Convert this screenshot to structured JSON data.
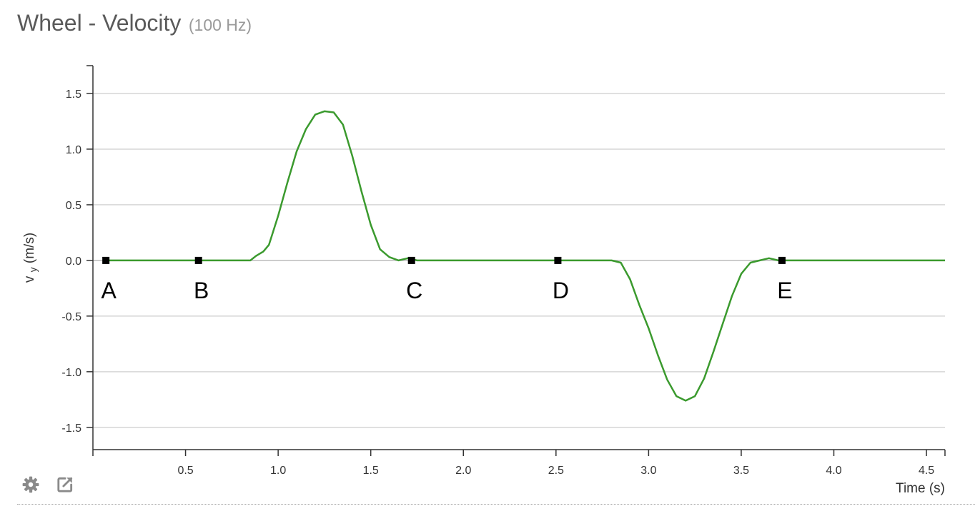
{
  "title": "Wheel - Velocity",
  "subtitle": "(100 Hz)",
  "toolbar": {
    "icons": [
      "gear-icon",
      "open-external-icon"
    ]
  },
  "chart_data": {
    "type": "line",
    "xlabel": "Time (s)",
    "ylabel": "v",
    "ylabel_subscript": "y",
    "ylabel_unit": "(m/s)",
    "xlim": [
      0.0,
      4.6
    ],
    "ylim": [
      -1.7,
      1.75
    ],
    "x_ticks": [
      "0.5",
      "1.0",
      "1.5",
      "2.0",
      "2.5",
      "3.0",
      "3.5",
      "4.0",
      "4.5"
    ],
    "y_ticks": [
      "1.5",
      "1.0",
      "0.5",
      "0.0",
      "-0.5",
      "-1.0",
      "-1.5"
    ],
    "grid": true,
    "series": [
      {
        "color": "#3b9a2e",
        "x": [
          0.07,
          0.85,
          0.88,
          0.92,
          0.95,
          1.0,
          1.05,
          1.1,
          1.15,
          1.2,
          1.25,
          1.3,
          1.35,
          1.4,
          1.45,
          1.5,
          1.55,
          1.6,
          1.65,
          1.7,
          1.75,
          1.8,
          1.85,
          2.8,
          2.85,
          2.9,
          2.95,
          3.0,
          3.05,
          3.1,
          3.15,
          3.2,
          3.25,
          3.3,
          3.35,
          3.4,
          3.45,
          3.5,
          3.55,
          3.6,
          3.65,
          3.7,
          3.75,
          4.6
        ],
        "y": [
          0.0,
          0.0,
          0.04,
          0.08,
          0.14,
          0.4,
          0.7,
          0.98,
          1.18,
          1.31,
          1.34,
          1.33,
          1.22,
          0.94,
          0.62,
          0.32,
          0.1,
          0.03,
          0.0,
          0.02,
          0.0,
          0.0,
          0.0,
          0.0,
          -0.02,
          -0.17,
          -0.4,
          -0.61,
          -0.85,
          -1.07,
          -1.22,
          -1.26,
          -1.22,
          -1.06,
          -0.82,
          -0.57,
          -0.32,
          -0.12,
          -0.02,
          0.0,
          0.02,
          0.0,
          0.0,
          0.0
        ]
      }
    ],
    "markers": [
      {
        "label": "A",
        "x": 0.07,
        "y": 0.0
      },
      {
        "label": "B",
        "x": 0.57,
        "y": 0.0
      },
      {
        "label": "C",
        "x": 1.72,
        "y": 0.0
      },
      {
        "label": "D",
        "x": 2.51,
        "y": 0.0
      },
      {
        "label": "E",
        "x": 3.72,
        "y": 0.0
      }
    ]
  }
}
